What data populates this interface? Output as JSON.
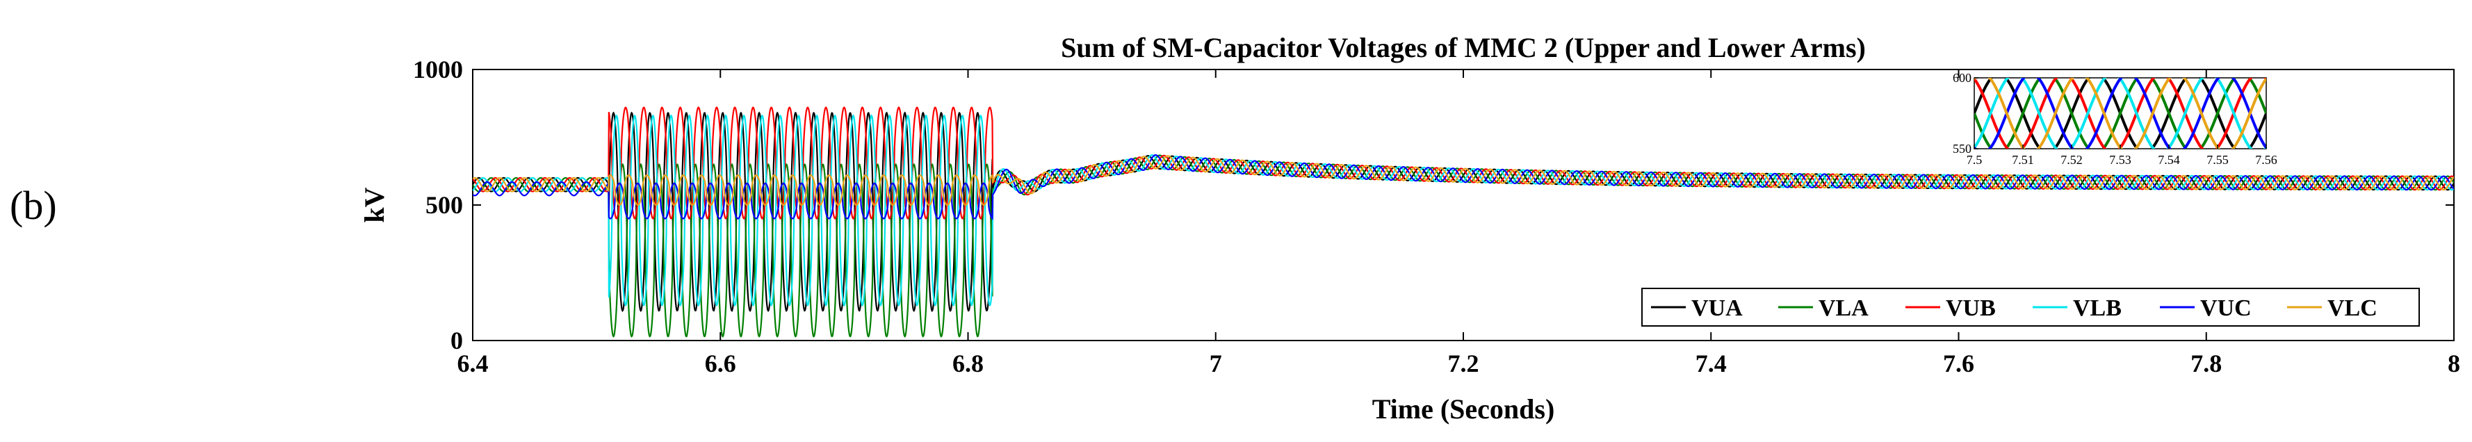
{
  "panel_label": "(b)",
  "chart_data": {
    "type": "line",
    "title": "Sum of SM-Capacitor Voltages of MMC 2 (Upper and Lower Arms)",
    "xlabel": "Time (Seconds)",
    "ylabel": "kV",
    "xlim": [
      6.4,
      8
    ],
    "ylim": [
      0,
      1000
    ],
    "xticks": [
      "6.4",
      "6.6",
      "6.8",
      "7",
      "7.2",
      "7.4",
      "7.6",
      "7.8",
      "8"
    ],
    "yticks": [
      "0",
      "500",
      "1000"
    ],
    "legend_position": "bottom-right",
    "series": [
      {
        "name": "VUA",
        "color": "#000000",
        "steady_mean": 575,
        "steady_amplitude": 25,
        "phase_deg": 0,
        "fault_min": 110,
        "fault_max": 840
      },
      {
        "name": "VLA",
        "color": "#008000",
        "steady_mean": 575,
        "steady_amplitude": 25,
        "phase_deg": 180,
        "fault_min": 15,
        "fault_max": 650
      },
      {
        "name": "VUB",
        "color": "#ff0000",
        "steady_mean": 575,
        "steady_amplitude": 25,
        "phase_deg": 120,
        "fault_min": 450,
        "fault_max": 860
      },
      {
        "name": "VLB",
        "color": "#00e5ee",
        "steady_mean": 575,
        "steady_amplitude": 25,
        "phase_deg": 300,
        "fault_min": 130,
        "fault_max": 830
      },
      {
        "name": "VUC",
        "color": "#0000ff",
        "steady_mean": 560,
        "steady_amplitude": 25,
        "phase_deg": 240,
        "fault_min": 450,
        "fault_max": 580
      },
      {
        "name": "VLC",
        "color": "#e8a317",
        "steady_mean": 575,
        "steady_amplitude": 25,
        "phase_deg": 60,
        "fault_min": 500,
        "fault_max": 610
      }
    ],
    "events": {
      "fault_start": 6.51,
      "fault_end": 6.82,
      "recovery_peak": 660,
      "recovery_peak_time": 6.95,
      "final_level": 580
    },
    "inset": {
      "xlim": [
        7.5,
        7.56
      ],
      "ylim": [
        550,
        600
      ],
      "xticks": [
        "7.5",
        "7.51",
        "7.52",
        "7.53",
        "7.54",
        "7.55",
        "7.56"
      ],
      "yticks": [
        "550",
        "600"
      ],
      "frequency_hz": 50
    }
  }
}
